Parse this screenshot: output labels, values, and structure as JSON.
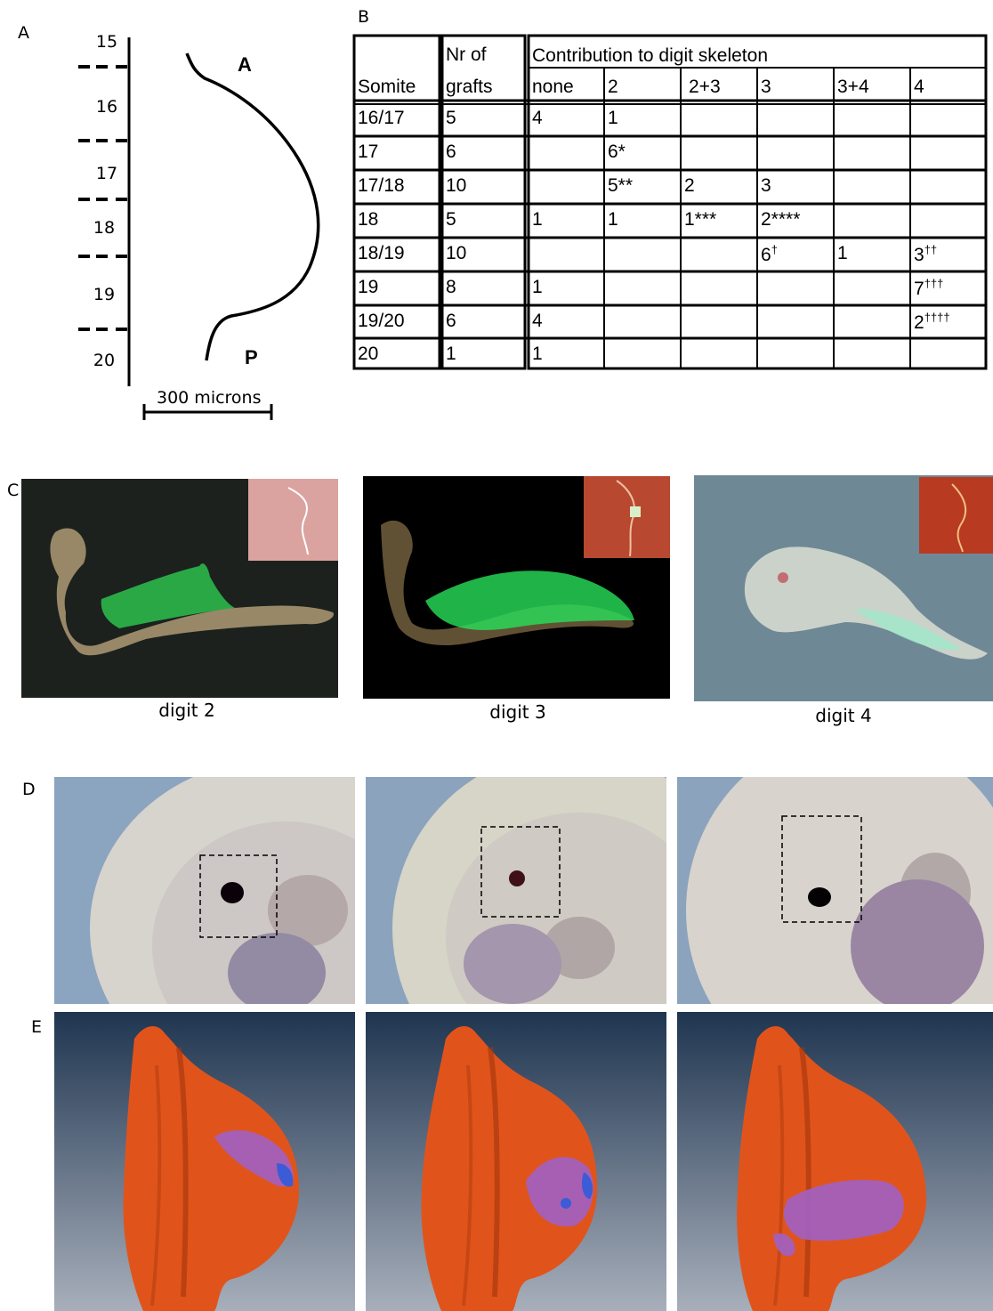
{
  "panel_labels": {
    "a": "A",
    "b": "B",
    "c": "C",
    "d": "D",
    "e": "E"
  },
  "panel_a": {
    "somites": [
      "15",
      "16",
      "17",
      "18",
      "19",
      "20"
    ],
    "anterior_label": "A",
    "posterior_label": "P",
    "scale_bar_label": "300 microns"
  },
  "panel_b": {
    "headers": {
      "somite": "Somite",
      "grafts_line1": "Nr of",
      "grafts_line2": "grafts",
      "contribution": "Contribution to digit skeleton",
      "sub": [
        "none",
        "2",
        "2+3",
        "3",
        "3+4",
        "4"
      ]
    },
    "rows": [
      {
        "somite": "16/17",
        "grafts": "5",
        "cells": [
          {
            "v": "4",
            "s": ""
          },
          {
            "v": "1",
            "s": ""
          },
          {
            "v": "",
            "s": ""
          },
          {
            "v": "",
            "s": ""
          },
          {
            "v": "",
            "s": ""
          },
          {
            "v": "",
            "s": ""
          }
        ]
      },
      {
        "somite": "17",
        "grafts": "6",
        "cells": [
          {
            "v": "",
            "s": ""
          },
          {
            "v": "6*",
            "s": ""
          },
          {
            "v": "",
            "s": ""
          },
          {
            "v": "",
            "s": ""
          },
          {
            "v": "",
            "s": ""
          },
          {
            "v": "",
            "s": ""
          }
        ]
      },
      {
        "somite": "17/18",
        "grafts": "10",
        "cells": [
          {
            "v": "",
            "s": ""
          },
          {
            "v": "5**",
            "s": ""
          },
          {
            "v": "2",
            "s": ""
          },
          {
            "v": "3",
            "s": ""
          },
          {
            "v": "",
            "s": ""
          },
          {
            "v": "",
            "s": ""
          }
        ]
      },
      {
        "somite": "18",
        "grafts": "5",
        "cells": [
          {
            "v": "1",
            "s": ""
          },
          {
            "v": "1",
            "s": ""
          },
          {
            "v": "1***",
            "s": ""
          },
          {
            "v": "2****",
            "s": ""
          },
          {
            "v": "",
            "s": ""
          },
          {
            "v": "",
            "s": ""
          }
        ]
      },
      {
        "somite": "18/19",
        "grafts": "10",
        "cells": [
          {
            "v": "",
            "s": ""
          },
          {
            "v": "",
            "s": ""
          },
          {
            "v": "",
            "s": ""
          },
          {
            "v": "6",
            "s": "†"
          },
          {
            "v": "1",
            "s": ""
          },
          {
            "v": "3",
            "s": "††"
          }
        ]
      },
      {
        "somite": "19",
        "grafts": "8",
        "cells": [
          {
            "v": "1",
            "s": ""
          },
          {
            "v": "",
            "s": ""
          },
          {
            "v": "",
            "s": ""
          },
          {
            "v": "",
            "s": ""
          },
          {
            "v": "",
            "s": ""
          },
          {
            "v": "7",
            "s": "†††"
          }
        ]
      },
      {
        "somite": "19/20",
        "grafts": "6",
        "cells": [
          {
            "v": "4",
            "s": ""
          },
          {
            "v": "",
            "s": ""
          },
          {
            "v": "",
            "s": ""
          },
          {
            "v": "",
            "s": ""
          },
          {
            "v": "",
            "s": ""
          },
          {
            "v": "2",
            "s": "††††"
          }
        ]
      },
      {
        "somite": "20",
        "grafts": "1",
        "cells": [
          {
            "v": "1",
            "s": ""
          },
          {
            "v": "",
            "s": ""
          },
          {
            "v": "",
            "s": ""
          },
          {
            "v": "",
            "s": ""
          },
          {
            "v": "",
            "s": ""
          },
          {
            "v": "",
            "s": ""
          }
        ]
      }
    ]
  },
  "panel_c": {
    "captions": [
      "digit 2",
      "digit 3",
      "digit 4"
    ]
  }
}
